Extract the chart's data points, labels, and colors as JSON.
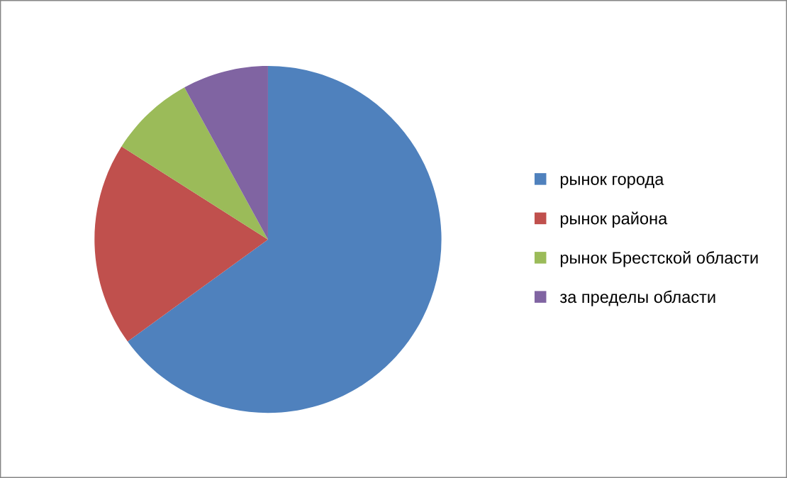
{
  "chart_data": {
    "type": "pie",
    "categories": [
      "рынок города",
      "рынок района",
      "рынок Брестской области",
      "за пределы области"
    ],
    "values": [
      65,
      19,
      8,
      8
    ],
    "colors": [
      "#4f81bd",
      "#c0504d",
      "#9bbb59",
      "#8064a2"
    ],
    "legend": "right"
  }
}
